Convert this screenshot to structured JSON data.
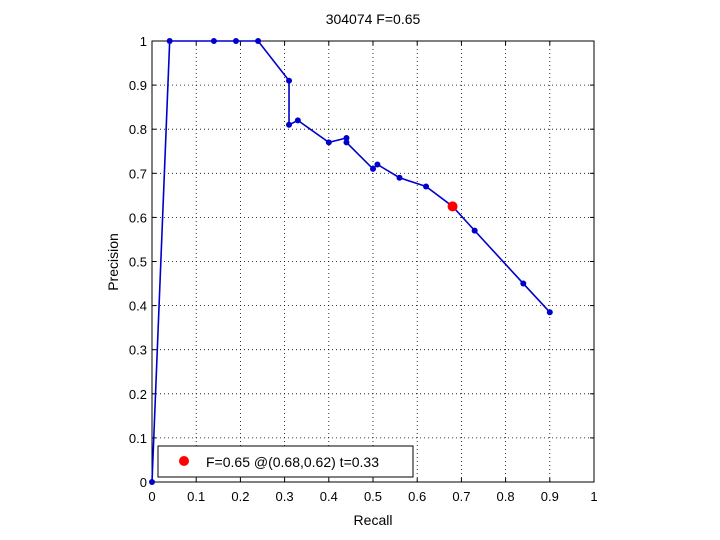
{
  "chart_data": {
    "type": "line",
    "title": "304074 F=0.65",
    "xlabel": "Recall",
    "ylabel": "Precision",
    "xlim": [
      0,
      1
    ],
    "ylim": [
      0,
      1
    ],
    "xticks": [
      "0",
      "0.1",
      "0.2",
      "0.3",
      "0.4",
      "0.5",
      "0.6",
      "0.7",
      "0.8",
      "0.9",
      "1"
    ],
    "yticks": [
      "0",
      "0.1",
      "0.2",
      "0.3",
      "0.4",
      "0.5",
      "0.6",
      "0.7",
      "0.8",
      "0.9",
      "1"
    ],
    "grid": true,
    "legend_position": "bottom-left",
    "series": [
      {
        "color": "#0000cc",
        "x": [
          0.0,
          0.04,
          0.14,
          0.19,
          0.24,
          0.31,
          0.31,
          0.33,
          0.4,
          0.44,
          0.44,
          0.5,
          0.51,
          0.56,
          0.62,
          0.68,
          0.73,
          0.84,
          0.9
        ],
        "y": [
          0.0,
          1.0,
          1.0,
          1.0,
          1.0,
          0.91,
          0.81,
          0.82,
          0.77,
          0.78,
          0.77,
          0.71,
          0.72,
          0.69,
          0.67,
          0.625,
          0.57,
          0.45,
          0.385
        ]
      }
    ],
    "highlight": {
      "x": 0.68,
      "y": 0.625,
      "color": "#ff0000",
      "label": "F=0.65 @(0.68,0.62) t=0.33"
    }
  }
}
